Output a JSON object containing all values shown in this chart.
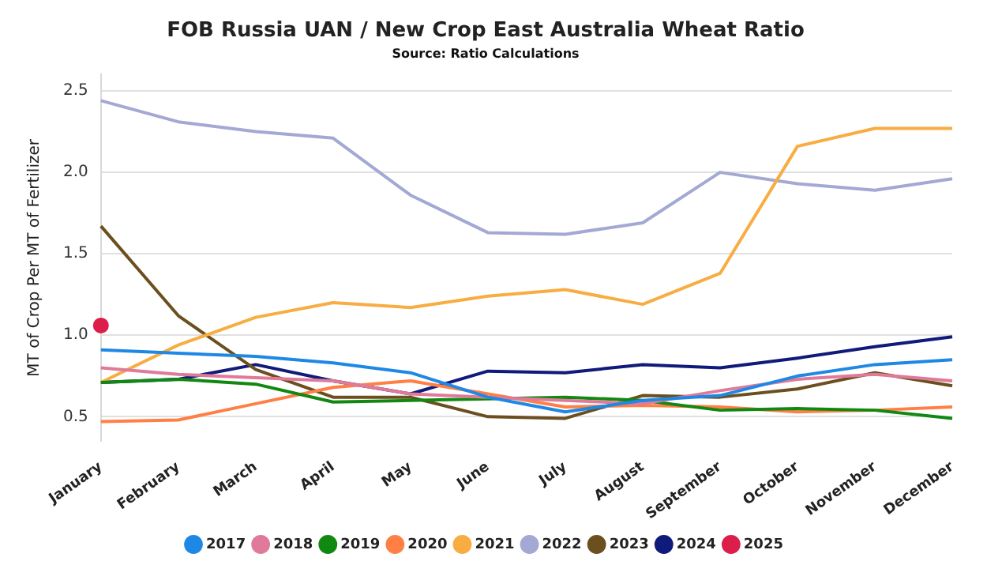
{
  "chart_data": {
    "type": "line",
    "title": "FOB Russia UAN / New Crop East Australia Wheat Ratio",
    "subtitle": "Source: Ratio Calculations",
    "ylabel": "MT of Crop Per MT of Fertilizer",
    "categories": [
      "January",
      "February",
      "March",
      "April",
      "May",
      "June",
      "July",
      "August",
      "September",
      "October",
      "November",
      "December"
    ],
    "series": [
      {
        "name": "2017",
        "color": "#1e88e5",
        "values": [
          0.91,
          0.89,
          0.87,
          0.83,
          0.77,
          0.62,
          0.53,
          0.6,
          0.63,
          0.75,
          0.82,
          0.85
        ]
      },
      {
        "name": "2018",
        "color": "#e07a9a",
        "values": [
          0.8,
          0.76,
          0.74,
          0.72,
          0.64,
          0.62,
          0.6,
          0.58,
          0.66,
          0.73,
          0.76,
          0.72
        ]
      },
      {
        "name": "2019",
        "color": "#118811",
        "values": [
          0.71,
          0.73,
          0.7,
          0.59,
          0.6,
          0.61,
          0.62,
          0.6,
          0.54,
          0.55,
          0.54,
          0.49
        ]
      },
      {
        "name": "2020",
        "color": "#ff7f45",
        "values": [
          0.47,
          0.48,
          0.58,
          0.68,
          0.72,
          0.64,
          0.56,
          0.57,
          0.56,
          0.53,
          0.54,
          0.56
        ]
      },
      {
        "name": "2021",
        "color": "#f7ad42",
        "values": [
          0.71,
          0.94,
          1.11,
          1.2,
          1.17,
          1.24,
          1.28,
          1.19,
          1.38,
          2.16,
          2.27,
          2.27
        ]
      },
      {
        "name": "2022",
        "color": "#a3a8d4",
        "values": [
          2.44,
          2.31,
          2.25,
          2.21,
          1.86,
          1.63,
          1.62,
          1.69,
          2.0,
          1.93,
          1.89,
          1.96
        ]
      },
      {
        "name": "2023",
        "color": "#6b4f1e",
        "values": [
          1.67,
          1.12,
          0.79,
          0.62,
          0.62,
          0.5,
          0.49,
          0.63,
          0.62,
          0.67,
          0.77,
          0.69
        ]
      },
      {
        "name": "2024",
        "color": "#101a7a",
        "values": [
          0.71,
          0.73,
          0.82,
          0.72,
          0.64,
          0.78,
          0.77,
          0.82,
          0.8,
          0.86,
          0.93,
          0.99
        ]
      },
      {
        "name": "2025",
        "color": "#dc1e4a",
        "type": "scatter",
        "values": [
          1.06,
          null,
          null,
          null,
          null,
          null,
          null,
          null,
          null,
          null,
          null,
          null
        ]
      }
    ],
    "ylim": [
      0.35,
      2.6
    ],
    "yticks": [
      {
        "value": 0.5,
        "label": "0.5"
      },
      {
        "value": 1,
        "label": "1.0"
      },
      {
        "value": 1.5,
        "label": "1.5"
      },
      {
        "value": 2,
        "label": "2.0"
      },
      {
        "value": 2.5,
        "label": "2.5"
      }
    ],
    "grid": "y",
    "legend": "bottom",
    "line_style": "solid"
  }
}
